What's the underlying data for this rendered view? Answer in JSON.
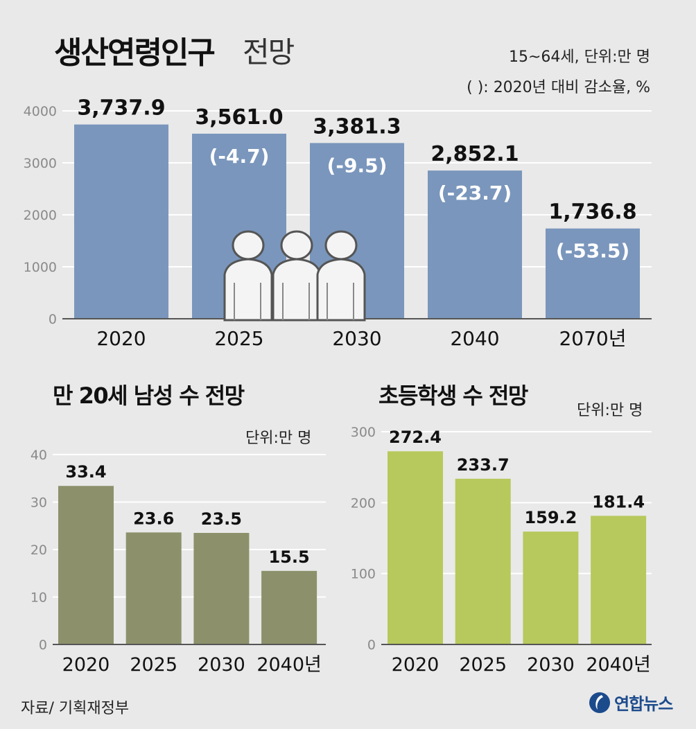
{
  "top": {
    "title_bold": "생산연령인구",
    "title_light": "전망",
    "note_unit": "15~64세, 단위:만 명",
    "note_pct": "( ): 2020년 대비 감소율, %"
  },
  "bottom_left": {
    "title": "만 20세 남성 수 전망",
    "unit": "단위:만 명"
  },
  "bottom_right": {
    "title": "초등학생 수 전망",
    "unit": "단위:만 명"
  },
  "footer": {
    "source": "자료/ 기획재정부",
    "logo_text": "연합뉴스"
  },
  "colors": {
    "top_bar": "#7a96bc",
    "left_bar": "#8c916b",
    "right_bar": "#b7c95c",
    "pct_text": "#ffffff",
    "grid": "#ffffff",
    "axis_text": "#8a8a8a",
    "logo": "#1c4b8c"
  },
  "chart_data": [
    {
      "id": "working-age",
      "type": "bar",
      "categories": [
        "2020",
        "2025",
        "2030",
        "2040",
        "2070년"
      ],
      "values": [
        3737.9,
        3561.0,
        3381.3,
        2852.1,
        1736.8
      ],
      "value_labels": [
        "3,737.9",
        "3,561.0",
        "3,381.3",
        "2,852.1",
        "1,736.8"
      ],
      "pct_labels": [
        "",
        "(-4.7)",
        "(-9.5)",
        "(-23.7)",
        "(-53.5)"
      ],
      "yticks": [
        0,
        1000,
        2000,
        3000,
        4000
      ],
      "ylim": [
        0,
        4000
      ],
      "title": "생산연령인구 전망",
      "xlabel": "",
      "ylabel": "",
      "grid": true
    },
    {
      "id": "men-20",
      "type": "bar",
      "categories": [
        "2020",
        "2025",
        "2030",
        "2040년"
      ],
      "values": [
        33.4,
        23.6,
        23.5,
        15.5
      ],
      "value_labels": [
        "33.4",
        "23.6",
        "23.5",
        "15.5"
      ],
      "yticks": [
        0,
        10,
        20,
        30,
        40
      ],
      "ylim": [
        0,
        40
      ],
      "title": "만 20세 남성 수 전망",
      "xlabel": "",
      "ylabel": "",
      "grid": true
    },
    {
      "id": "elementary",
      "type": "bar",
      "categories": [
        "2020",
        "2025",
        "2030",
        "2040년"
      ],
      "values": [
        272.4,
        233.7,
        159.2,
        181.4
      ],
      "value_labels": [
        "272.4",
        "233.7",
        "159.2",
        "181.4"
      ],
      "yticks": [
        0,
        100,
        200,
        300
      ],
      "ylim": [
        0,
        300
      ],
      "title": "초등학생 수 전망",
      "xlabel": "",
      "ylabel": "",
      "grid": true
    }
  ]
}
